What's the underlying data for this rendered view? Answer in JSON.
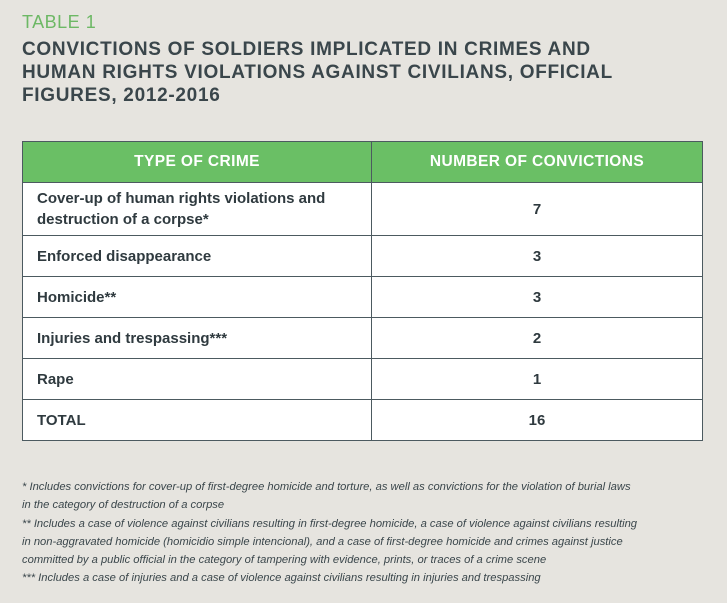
{
  "table_label": "TABLE 1",
  "title_lines": [
    "CONVICTIONS OF SOLDIERS IMPLICATED IN CRIMES AND",
    "HUMAN RIGHTS VIOLATIONS AGAINST CIVILIANS, OFFICIAL",
    "FIGURES, 2012-2016"
  ],
  "table": {
    "headers": [
      "TYPE OF CRIME",
      "NUMBER OF CONVICTIONS"
    ],
    "rows": [
      {
        "crime_lines": [
          "Cover-up of human rights violations and",
          "destruction of a corpse*"
        ],
        "count": "7"
      },
      {
        "crime_lines": [
          "Enforced disappearance"
        ],
        "count": "3"
      },
      {
        "crime_lines": [
          "Homicide**"
        ],
        "count": "3"
      },
      {
        "crime_lines": [
          "Injuries and trespassing***"
        ],
        "count": "2"
      },
      {
        "crime_lines": [
          "Rape"
        ],
        "count": "1"
      },
      {
        "crime_lines": [
          "TOTAL"
        ],
        "count": "16"
      }
    ]
  },
  "footnotes": [
    "* Includes convictions for cover-up of first-degree homicide and torture, as well as convictions for the violation of burial laws",
    "in the category of destruction of a corpse",
    "** Includes a case of violence against civilians resulting in first-degree homicide, a case of violence against civilians resulting",
    "in non-aggravated homicide (homicidio simple intencional), and a case of first-degree homicide and crimes against justice",
    "committed by a public official in the category of tampering with evidence, prints, or traces of a crime scene",
    "*** Includes a case of injuries and a case of violence against civilians resulting in injuries and trespassing"
  ]
}
